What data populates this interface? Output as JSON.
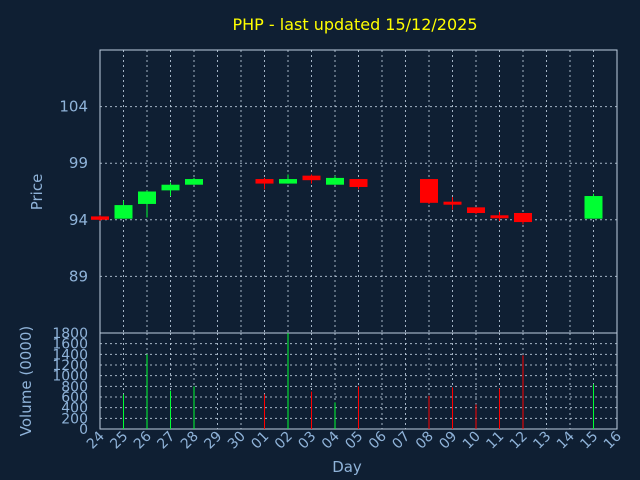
{
  "chart_data": {
    "type": "candlestick",
    "title": "PHP - last updated 15/12/2025",
    "xlabel": "Day",
    "price": {
      "ylabel": "Price",
      "ylim": [
        84,
        109
      ],
      "ticks": [
        89,
        94,
        99,
        104
      ]
    },
    "volume": {
      "ylabel": "Volume (0000)",
      "ylim": [
        0,
        1800
      ],
      "ticks": [
        0,
        200,
        400,
        600,
        800,
        1000,
        1200,
        1400,
        1600,
        1800
      ]
    },
    "days": [
      "24",
      "25",
      "26",
      "27",
      "28",
      "29",
      "30",
      "01",
      "02",
      "03",
      "04",
      "05",
      "06",
      "07",
      "08",
      "09",
      "10",
      "11",
      "12",
      "13",
      "14",
      "15",
      "16"
    ],
    "candles": [
      {
        "day": "24",
        "open": 94.3,
        "high": 94.4,
        "low": 93.9,
        "close": 94.0,
        "volume": 0
      },
      {
        "day": "25",
        "open": 94.1,
        "high": 95.7,
        "low": 94.1,
        "close": 95.3,
        "volume": 650
      },
      {
        "day": "26",
        "open": 95.4,
        "high": 96.6,
        "low": 94.2,
        "close": 96.5,
        "volume": 1400
      },
      {
        "day": "27",
        "open": 96.6,
        "high": 97.3,
        "low": 96.1,
        "close": 97.1,
        "volume": 720
      },
      {
        "day": "28",
        "open": 97.1,
        "high": 97.7,
        "low": 97.1,
        "close": 97.6,
        "volume": 800
      },
      {
        "day": "01",
        "open": 97.6,
        "high": 97.7,
        "low": 96.7,
        "close": 97.2,
        "volume": 650
      },
      {
        "day": "02",
        "open": 97.2,
        "high": 98.0,
        "low": 97.2,
        "close": 97.6,
        "volume": 1800
      },
      {
        "day": "03",
        "open": 97.9,
        "high": 98.0,
        "low": 97.2,
        "close": 97.5,
        "volume": 700
      },
      {
        "day": "04",
        "open": 97.1,
        "high": 97.9,
        "low": 97.1,
        "close": 97.7,
        "volume": 500
      },
      {
        "day": "05",
        "open": 97.6,
        "high": 97.6,
        "low": 96.7,
        "close": 96.9,
        "volume": 800
      },
      {
        "day": "08",
        "open": 97.6,
        "high": 97.6,
        "low": 95.4,
        "close": 95.5,
        "volume": 620
      },
      {
        "day": "09",
        "open": 95.6,
        "high": 96.0,
        "low": 94.9,
        "close": 95.4,
        "volume": 780
      },
      {
        "day": "10",
        "open": 95.1,
        "high": 95.1,
        "low": 94.5,
        "close": 94.6,
        "volume": 460
      },
      {
        "day": "11",
        "open": 94.4,
        "high": 94.7,
        "low": 93.9,
        "close": 94.2,
        "volume": 760
      },
      {
        "day": "12",
        "open": 94.6,
        "high": 94.6,
        "low": 93.6,
        "close": 93.8,
        "volume": 1380
      },
      {
        "day": "15",
        "open": 94.1,
        "high": 96.3,
        "low": 94.1,
        "close": 96.1,
        "volume": 840
      }
    ],
    "colors": {
      "up": "#00ff33",
      "down": "#ff0000",
      "background": "#0f1f33",
      "title": "#ffff00",
      "axis_text": "#8fb3d9",
      "grid": "#bfcfe0"
    },
    "grid": true
  }
}
